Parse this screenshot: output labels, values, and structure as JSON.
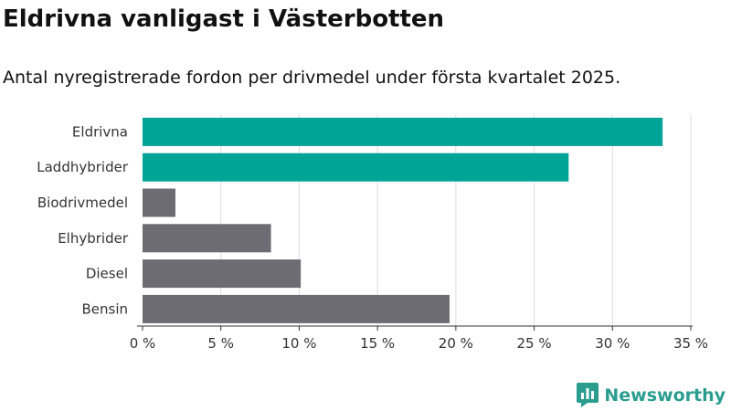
{
  "title": "Eldrivna vanligast i Västerbotten",
  "subtitle": "Antal nyregistrerade fordon per drivmedel under första kvartalet 2025.",
  "brand": {
    "name": "Newsworthy",
    "color": "#2a9d8f"
  },
  "colors": {
    "highlight": "#00a497",
    "default": "#6d6c72",
    "grid": "#dddddd",
    "axis": "#333333"
  },
  "chart_data": {
    "type": "bar",
    "orientation": "horizontal",
    "categories": [
      "Eldrivna",
      "Laddhybrider",
      "Biodrivmedel",
      "Elhybrider",
      "Diesel",
      "Bensin"
    ],
    "values": [
      33.2,
      27.2,
      2.1,
      8.2,
      10.1,
      19.6
    ],
    "highlight": [
      true,
      true,
      false,
      false,
      false,
      false
    ],
    "xlim": [
      0,
      35
    ],
    "xticks": [
      0,
      5,
      10,
      15,
      20,
      25,
      30,
      35
    ],
    "tick_labels": [
      "0 %",
      "5 %",
      "10 %",
      "15 %",
      "20 %",
      "25 %",
      "30 %",
      "35 %"
    ],
    "grid": true,
    "xlabel": "",
    "ylabel": ""
  }
}
